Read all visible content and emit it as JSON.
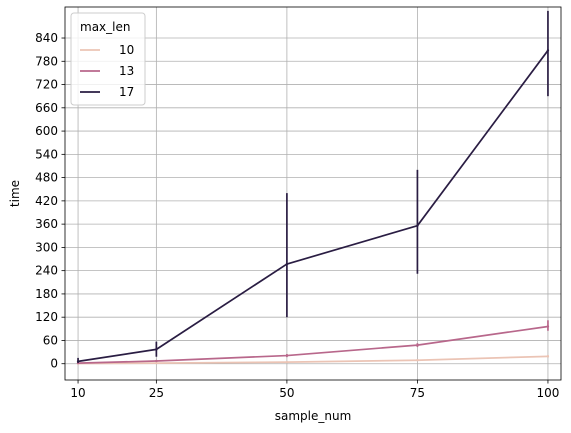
{
  "chart_data": {
    "type": "line",
    "title": "",
    "xlabel": "sample_num",
    "ylabel": "time",
    "x": [
      10,
      25,
      50,
      75,
      100
    ],
    "x_ticks": [
      10,
      25,
      50,
      75,
      100
    ],
    "y_ticks": [
      0,
      60,
      120,
      180,
      240,
      300,
      360,
      420,
      480,
      540,
      600,
      660,
      720,
      780,
      840
    ],
    "xlim": [
      7.5,
      102.5
    ],
    "ylim": [
      -42,
      920
    ],
    "grid": true,
    "legend": {
      "title": "max_len",
      "placement": "top-left"
    },
    "series": [
      {
        "name": "10",
        "color": "#ebc4b5",
        "values": [
          0.5,
          1.5,
          4,
          9,
          19
        ],
        "ci": [
          [
            0.3,
            0.8
          ],
          [
            1,
            2
          ],
          [
            3,
            5
          ],
          [
            7,
            11
          ],
          [
            16,
            22
          ]
        ]
      },
      {
        "name": "13",
        "color": "#b8678b",
        "values": [
          1.5,
          7,
          21,
          48,
          96
        ],
        "ci": [
          [
            1,
            2
          ],
          [
            5,
            9
          ],
          [
            17,
            25
          ],
          [
            43,
            53
          ],
          [
            85,
            112
          ]
        ]
      },
      {
        "name": "17",
        "color": "#2a1d43",
        "values": [
          6,
          37,
          257,
          356,
          808
        ],
        "ci": [
          [
            2,
            15
          ],
          [
            18,
            57
          ],
          [
            120,
            440
          ],
          [
            232,
            500
          ],
          [
            690,
            910
          ]
        ]
      }
    ]
  }
}
